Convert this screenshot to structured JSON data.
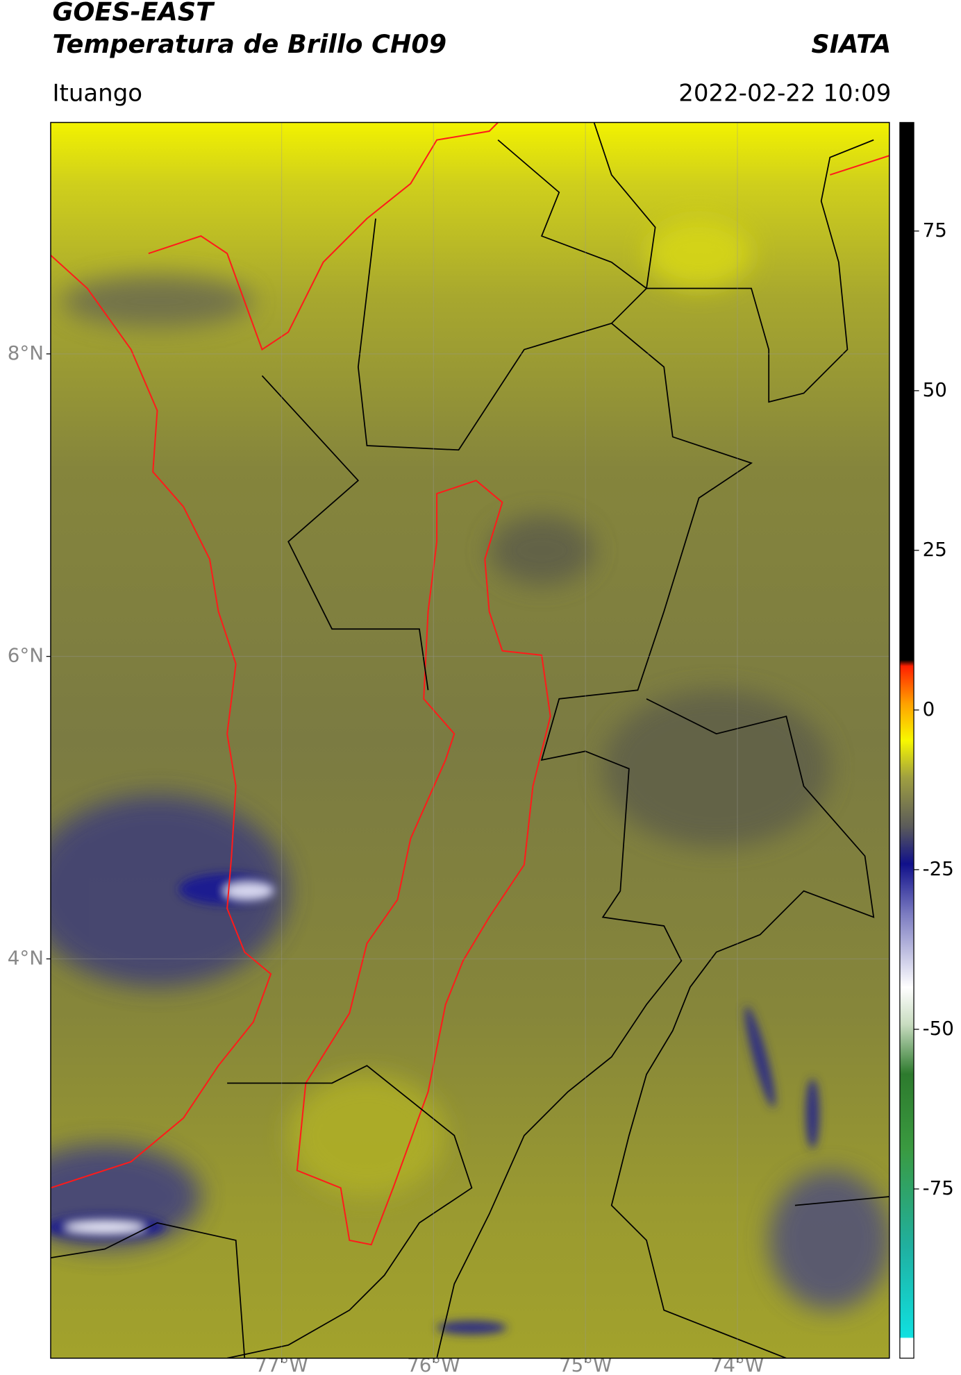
{
  "header": {
    "title_line1": "GOES-EAST",
    "title_line2": "Temperatura de Brillo CH09",
    "org": "SIATA",
    "location": "Ituango",
    "datetime": "2022-02-22 10:09"
  },
  "map": {
    "lat_range": [
      1.36,
      9.53
    ],
    "lon_range": [
      -78.52,
      -73.0
    ],
    "lat_ticks": [
      {
        "value": 8,
        "label": "8°N"
      },
      {
        "value": 6,
        "label": "6°N"
      },
      {
        "value": 4,
        "label": "4°N"
      }
    ],
    "lon_ticks": [
      {
        "value": -77,
        "label": "77°W"
      },
      {
        "value": -76,
        "label": "76°W"
      },
      {
        "value": -75,
        "label": "75°W"
      },
      {
        "value": -74,
        "label": "74°W"
      }
    ]
  },
  "colorbar": {
    "range": [
      -101.5,
      92
    ],
    "ticks": [
      75,
      50,
      25,
      0,
      -25,
      -50,
      -75
    ]
  }
}
